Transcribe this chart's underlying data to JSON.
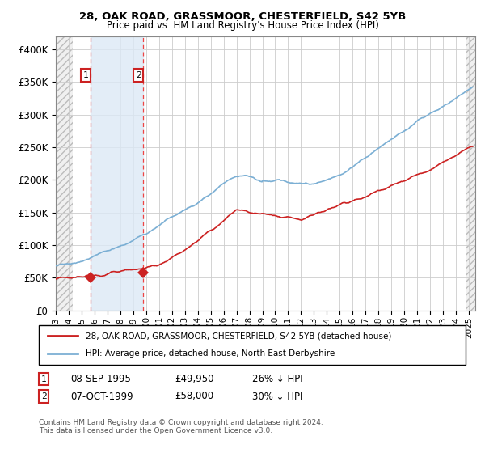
{
  "title1": "28, OAK ROAD, GRASSMOOR, CHESTERFIELD, S42 5YB",
  "title2": "Price paid vs. HM Land Registry's House Price Index (HPI)",
  "ylabel_ticks": [
    "£0",
    "£50K",
    "£100K",
    "£150K",
    "£200K",
    "£250K",
    "£300K",
    "£350K",
    "£400K"
  ],
  "ytick_vals": [
    0,
    50000,
    100000,
    150000,
    200000,
    250000,
    300000,
    350000,
    400000
  ],
  "ylim": [
    0,
    420000
  ],
  "xlim_start": 1993.0,
  "xlim_end": 2025.5,
  "sale1_date": 1995.69,
  "sale1_price": 49950,
  "sale2_date": 1999.77,
  "sale2_price": 58000,
  "hpi_color": "#7bafd4",
  "price_color": "#cc2222",
  "shade_color": "#dce9f5",
  "grid_color": "#cccccc",
  "legend_label_price": "28, OAK ROAD, GRASSMOOR, CHESTERFIELD, S42 5YB (detached house)",
  "legend_label_hpi": "HPI: Average price, detached house, North East Derbyshire",
  "annotation1_date": "08-SEP-1995",
  "annotation1_price": "£49,950",
  "annotation1_pct": "26% ↓ HPI",
  "annotation2_date": "07-OCT-1999",
  "annotation2_price": "£58,000",
  "annotation2_pct": "30% ↓ HPI",
  "footnote": "Contains HM Land Registry data © Crown copyright and database right 2024.\nThis data is licensed under the Open Government Licence v3.0.",
  "xticks": [
    1993,
    1994,
    1995,
    1996,
    1997,
    1998,
    1999,
    2000,
    2001,
    2002,
    2003,
    2004,
    2005,
    2006,
    2007,
    2008,
    2009,
    2010,
    2011,
    2012,
    2013,
    2014,
    2015,
    2016,
    2017,
    2018,
    2019,
    2020,
    2021,
    2022,
    2023,
    2024,
    2025
  ],
  "hatch_left_end": 1994.3,
  "hatch_right_start": 2024.83
}
